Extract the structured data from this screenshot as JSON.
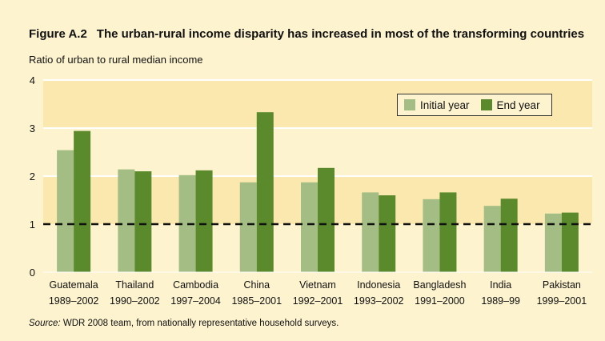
{
  "figure": {
    "number": "Figure A.2",
    "title": "The urban-rural income disparity has increased in most of the transforming countries"
  },
  "source": {
    "lead": "Source:",
    "text": " WDR 2008 team, from nationally representative household surveys."
  },
  "colors": {
    "initial": "#a3bd84",
    "end": "#5a8a2c",
    "plot_band_light": "#fdf3cf",
    "plot_band_dark": "#fbe8ae",
    "reference_line": "#111111"
  },
  "chart_data": {
    "type": "bar",
    "title": "The urban-rural income disparity has increased in most of the transforming countries",
    "ylabel": "Ratio of urban to rural median income",
    "xlabel": "",
    "ylim": [
      0,
      4
    ],
    "yticks": [
      0,
      1,
      2,
      3,
      4
    ],
    "grid": true,
    "reference_line": 1,
    "legend_position": "top-right",
    "categories": [
      "Guatemala",
      "Thailand",
      "Cambodia",
      "China",
      "Vietnam",
      "Indonesia",
      "Bangladesh",
      "India",
      "Pakistan"
    ],
    "periods": [
      "1989–2002",
      "1990–2002",
      "1997–2004",
      "1985–2001",
      "1992–2001",
      "1993–2002",
      "1991–2000",
      "1989–99",
      "1999–2001"
    ],
    "series": [
      {
        "name": "Initial year",
        "values": [
          2.54,
          2.14,
          2.02,
          1.87,
          1.87,
          1.66,
          1.52,
          1.38,
          1.22
        ]
      },
      {
        "name": "End year",
        "values": [
          2.94,
          2.1,
          2.12,
          3.33,
          2.17,
          1.6,
          1.66,
          1.53,
          1.24
        ]
      }
    ]
  }
}
